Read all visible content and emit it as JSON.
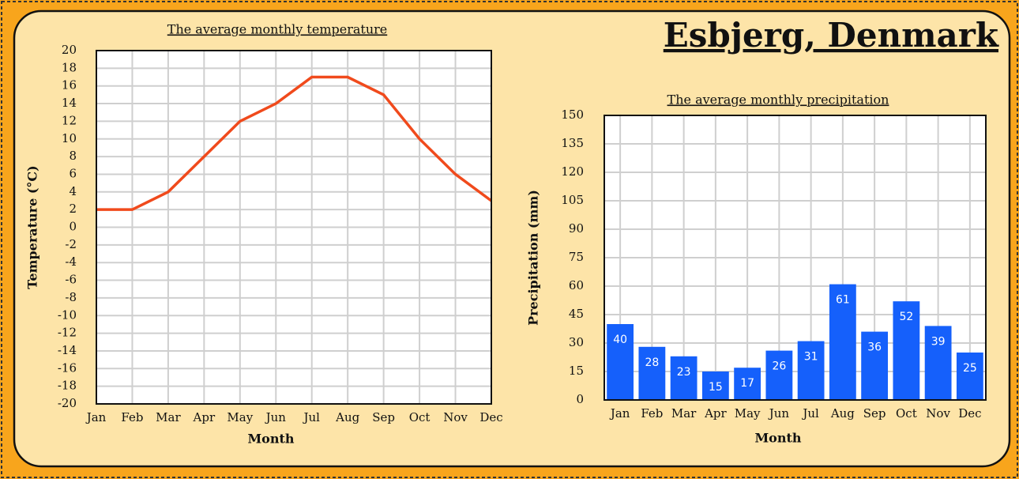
{
  "title": "Esbjerg, Denmark",
  "chart_data": [
    {
      "type": "line",
      "title": "The average monthly temperature",
      "x_label": "Month",
      "y_label": "Temperature (°C)",
      "categories": [
        "Jan",
        "Feb",
        "Mar",
        "Apr",
        "May",
        "Jun",
        "Jul",
        "Aug",
        "Sep",
        "Oct",
        "Nov",
        "Dec"
      ],
      "values": [
        2,
        2,
        4,
        8,
        12,
        14,
        17,
        17,
        15,
        10,
        6,
        3
      ],
      "color": "#f04a1c",
      "ylim": [
        -20,
        20
      ],
      "yticks": [
        -20,
        -18,
        -16,
        -14,
        -12,
        -10,
        -8,
        -6,
        -4,
        -2,
        0,
        2,
        4,
        6,
        8,
        10,
        12,
        14,
        16,
        18,
        20
      ],
      "grid": true
    },
    {
      "type": "bar",
      "title": "The average monthly precipitation",
      "x_label": "Month",
      "y_label": "Precipitation (mm)",
      "categories": [
        "Jan",
        "Feb",
        "Mar",
        "Apr",
        "May",
        "Jun",
        "Jul",
        "Aug",
        "Sep",
        "Oct",
        "Nov",
        "Dec"
      ],
      "values": [
        40,
        28,
        23,
        15,
        17,
        26,
        31,
        61,
        36,
        52,
        39,
        25
      ],
      "color": "#1560fb",
      "ylim": [
        0,
        150
      ],
      "yticks": [
        0,
        15,
        30,
        45,
        60,
        75,
        90,
        105,
        120,
        135,
        150
      ],
      "grid": true
    }
  ]
}
